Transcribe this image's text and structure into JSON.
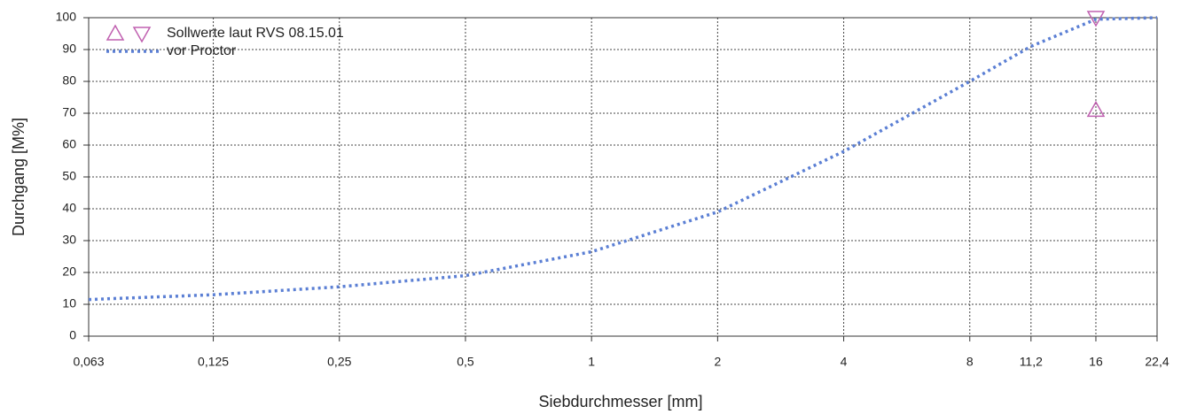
{
  "chart_data": {
    "type": "line",
    "xlabel": "Siebdurchmesser [mm]",
    "ylabel": "Durchgang [M%]",
    "xscale": "log",
    "xlim": [
      0.063,
      22.4
    ],
    "ylim": [
      0,
      100
    ],
    "xticks": [
      {
        "value": 0.063,
        "label": "0,063"
      },
      {
        "value": 0.125,
        "label": "0,125"
      },
      {
        "value": 0.25,
        "label": "0,25"
      },
      {
        "value": 0.5,
        "label": "0,5"
      },
      1,
      2,
      4,
      8,
      {
        "value": 11.2,
        "label": "11,2"
      },
      16,
      {
        "value": 22.4,
        "label": "22,4"
      }
    ],
    "yticks": [
      0,
      10,
      20,
      30,
      40,
      50,
      60,
      70,
      80,
      90,
      100
    ],
    "grid": true,
    "legend": "upper-left",
    "series": [
      {
        "name": "Sollwerte laut RVS 08.15.01",
        "color": "#c060b0",
        "style": "markers",
        "markers": [
          "triangle-up",
          "triangle-down"
        ],
        "x": [
          16,
          16
        ],
        "values": [
          71,
          100
        ]
      },
      {
        "name": "vor Proctor",
        "color": "#5b7fd4",
        "style": "dotted",
        "x": [
          0.063,
          0.125,
          0.25,
          0.5,
          1,
          2,
          4,
          8,
          11.2,
          16,
          22.4
        ],
        "values": [
          11.5,
          13,
          15.5,
          19,
          26.5,
          39,
          58,
          80,
          91,
          99.5,
          100
        ]
      }
    ]
  }
}
